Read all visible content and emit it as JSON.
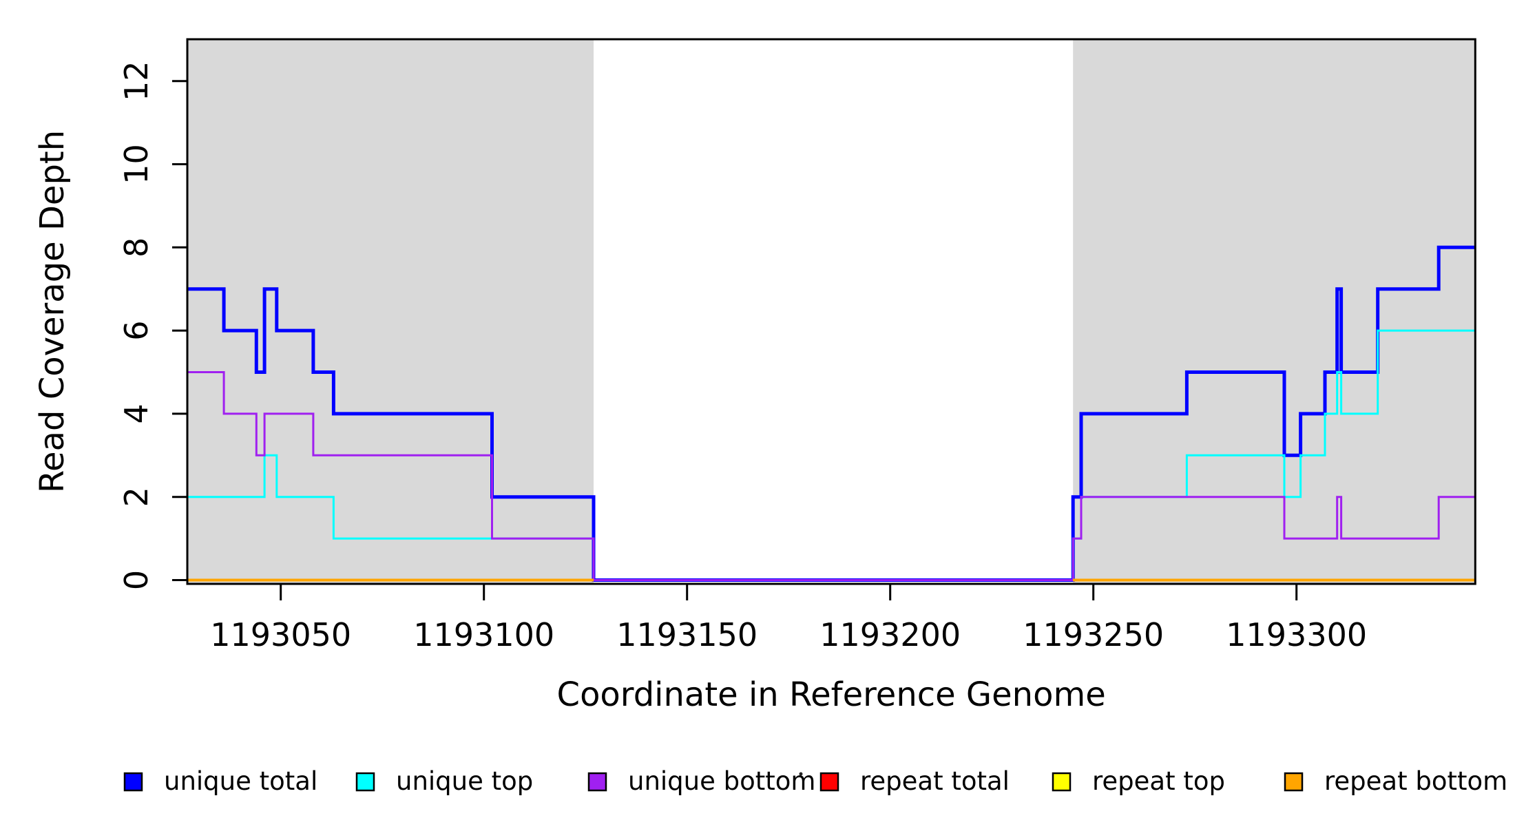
{
  "chart_data": {
    "type": "line",
    "subtype": "step-post",
    "title": "",
    "xlabel": "Coordinate in Reference Genome",
    "ylabel": "Read Coverage Depth",
    "xlim": [
      1193027,
      1193344
    ],
    "ylim": [
      0,
      13
    ],
    "grid": false,
    "x_ticks": [
      1193050,
      1193100,
      1193150,
      1193200,
      1193250,
      1193300
    ],
    "y_ticks": [
      0,
      2,
      4,
      6,
      8,
      10,
      12
    ],
    "shaded_regions": [
      {
        "x0": 1193027,
        "x1": 1193127,
        "color": "#D9D9D9"
      },
      {
        "x0": 1193245,
        "x1": 1193344,
        "color": "#D9D9D9"
      }
    ],
    "series": [
      {
        "name": "unique total",
        "color": "#0000FF",
        "width": 5,
        "points": [
          [
            1193027,
            7
          ],
          [
            1193036,
            6
          ],
          [
            1193044,
            5
          ],
          [
            1193046,
            7
          ],
          [
            1193049,
            6
          ],
          [
            1193058,
            5
          ],
          [
            1193063,
            4
          ],
          [
            1193102,
            2
          ],
          [
            1193127,
            0
          ],
          [
            1193245,
            2
          ],
          [
            1193247,
            4
          ],
          [
            1193273,
            5
          ],
          [
            1193297,
            3
          ],
          [
            1193301,
            4
          ],
          [
            1193307,
            5
          ],
          [
            1193310,
            7
          ],
          [
            1193311,
            5
          ],
          [
            1193320,
            7
          ],
          [
            1193335,
            8
          ],
          [
            1193344,
            8
          ]
        ]
      },
      {
        "name": "unique top",
        "color": "#00FFFF",
        "width": 3,
        "points": [
          [
            1193027,
            2
          ],
          [
            1193046,
            3
          ],
          [
            1193049,
            2
          ],
          [
            1193063,
            1
          ],
          [
            1193127,
            0
          ],
          [
            1193245,
            1
          ],
          [
            1193247,
            2
          ],
          [
            1193273,
            3
          ],
          [
            1193297,
            2
          ],
          [
            1193301,
            3
          ],
          [
            1193307,
            4
          ],
          [
            1193310,
            5
          ],
          [
            1193311,
            4
          ],
          [
            1193320,
            6
          ],
          [
            1193344,
            6
          ]
        ]
      },
      {
        "name": "unique bottom",
        "color": "#A020F0",
        "width": 3,
        "points": [
          [
            1193027,
            5
          ],
          [
            1193036,
            4
          ],
          [
            1193044,
            3
          ],
          [
            1193046,
            4
          ],
          [
            1193058,
            3
          ],
          [
            1193102,
            1
          ],
          [
            1193127,
            0
          ],
          [
            1193245,
            1
          ],
          [
            1193247,
            2
          ],
          [
            1193297,
            1
          ],
          [
            1193310,
            2
          ],
          [
            1193311,
            1
          ],
          [
            1193335,
            2
          ],
          [
            1193344,
            2
          ]
        ]
      },
      {
        "name": "repeat total",
        "color": "#FF0000",
        "width": 3,
        "segments": [
          [
            [
              1193027,
              0
            ],
            [
              1193127,
              0
            ]
          ],
          [
            [
              1193245,
              0
            ],
            [
              1193344,
              0
            ]
          ]
        ]
      },
      {
        "name": "repeat top",
        "color": "#FFFF00",
        "width": 3,
        "segments": [
          [
            [
              1193027,
              0
            ],
            [
              1193127,
              0
            ]
          ],
          [
            [
              1193245,
              0
            ],
            [
              1193344,
              0
            ]
          ]
        ]
      },
      {
        "name": "repeat bottom",
        "color": "#FFA500",
        "width": 4,
        "segments": [
          [
            [
              1193027,
              0
            ],
            [
              1193127,
              0
            ]
          ],
          [
            [
              1193245,
              0
            ],
            [
              1193344,
              0
            ]
          ]
        ]
      }
    ],
    "legend": {
      "position": "bottom",
      "entries": [
        {
          "label": "unique total",
          "color": "#0000FF"
        },
        {
          "label": "unique top",
          "color": "#00FFFF"
        },
        {
          "label": "unique bottom",
          "color": "#A020F0"
        },
        {
          "label": "repeat total",
          "color": "#FF0000"
        },
        {
          "label": "repeat top",
          "color": "#FFFF00"
        },
        {
          "label": "repeat bottom",
          "color": "#FFA500"
        }
      ]
    }
  }
}
